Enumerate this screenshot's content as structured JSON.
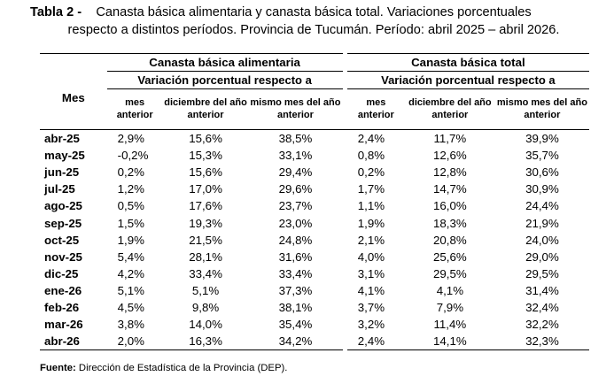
{
  "caption": {
    "label": "Tabla 2 -",
    "line1": "Canasta básica alimentaria y canasta básica total. Variaciones porcentuales",
    "line2": "respecto a distintos períodos. Provincia de Tucumán. Período: abril 2025 – abril 2026."
  },
  "table": {
    "mes_header": "Mes",
    "groups": [
      {
        "title": "Canasta básica alimentaria",
        "subtitle": "Variación porcentual respecto a"
      },
      {
        "title": "Canasta básica total",
        "subtitle": "Variación porcentual respecto a"
      }
    ],
    "columns": [
      "mes anterior",
      "diciembre del año anterior",
      "mismo mes del año anterior"
    ],
    "rows": [
      {
        "mes": "abr-25",
        "vals": [
          "2,9%",
          "15,6%",
          "38,5%",
          "2,4%",
          "11,7%",
          "39,9%"
        ]
      },
      {
        "mes": "may-25",
        "vals": [
          "-0,2%",
          "15,3%",
          "33,1%",
          "0,8%",
          "12,6%",
          "35,7%"
        ]
      },
      {
        "mes": "jun-25",
        "vals": [
          "0,2%",
          "15,6%",
          "29,4%",
          "0,2%",
          "12,8%",
          "30,6%"
        ]
      },
      {
        "mes": "jul-25",
        "vals": [
          "1,2%",
          "17,0%",
          "29,6%",
          "1,7%",
          "14,7%",
          "30,9%"
        ]
      },
      {
        "mes": "ago-25",
        "vals": [
          "0,5%",
          "17,6%",
          "23,7%",
          "1,1%",
          "16,0%",
          "24,4%"
        ]
      },
      {
        "mes": "sep-25",
        "vals": [
          "1,5%",
          "19,3%",
          "23,0%",
          "1,9%",
          "18,3%",
          "21,9%"
        ]
      },
      {
        "mes": "oct-25",
        "vals": [
          "1,9%",
          "21,5%",
          "24,8%",
          "2,1%",
          "20,8%",
          "24,0%"
        ]
      },
      {
        "mes": "nov-25",
        "vals": [
          "5,4%",
          "28,1%",
          "31,6%",
          "4,0%",
          "25,6%",
          "29,0%"
        ]
      },
      {
        "mes": "dic-25",
        "vals": [
          "4,2%",
          "33,4%",
          "33,4%",
          "3,1%",
          "29,5%",
          "29,5%"
        ]
      },
      {
        "mes": "ene-26",
        "vals": [
          "5,1%",
          "5,1%",
          "37,3%",
          "4,1%",
          "4,1%",
          "31,4%"
        ]
      },
      {
        "mes": "feb-26",
        "vals": [
          "4,5%",
          "9,8%",
          "38,1%",
          "3,7%",
          "7,9%",
          "32,4%"
        ]
      },
      {
        "mes": "mar-26",
        "vals": [
          "3,8%",
          "14,0%",
          "35,4%",
          "3,2%",
          "11,4%",
          "32,2%"
        ]
      },
      {
        "mes": "abr-26",
        "vals": [
          "2,0%",
          "16,3%",
          "34,2%",
          "2,4%",
          "14,1%",
          "32,3%"
        ]
      }
    ]
  },
  "source": {
    "label": "Fuente:",
    "text": " Dirección de Estadística de la Provincia (DEP)."
  }
}
